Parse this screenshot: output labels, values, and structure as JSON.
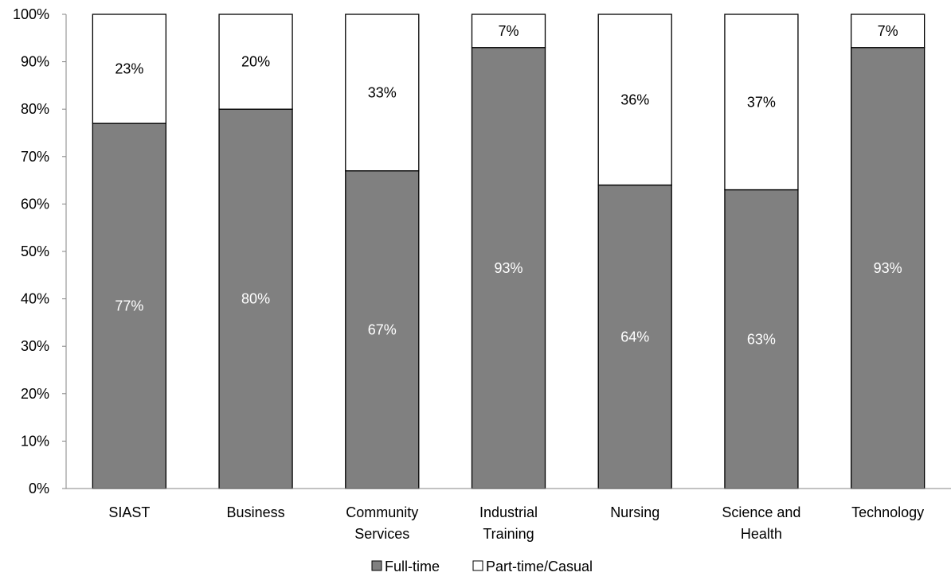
{
  "chart_data": {
    "type": "bar",
    "stacked": true,
    "categories": [
      [
        "SIAST"
      ],
      [
        "Business"
      ],
      [
        "Community",
        "Services"
      ],
      [
        "Industrial",
        "Training"
      ],
      [
        "Nursing"
      ],
      [
        "Science and",
        "Health"
      ],
      [
        "Technology"
      ]
    ],
    "series": [
      {
        "name": "Full-time",
        "values": [
          77,
          80,
          67,
          93,
          64,
          63,
          93
        ],
        "labels": [
          "77%",
          "80%",
          "67%",
          "93%",
          "64%",
          "63%",
          "93%"
        ],
        "color": "#808080",
        "label_color": "#ffffff"
      },
      {
        "name": "Part-time/Casual",
        "values": [
          23,
          20,
          33,
          7,
          36,
          37,
          7
        ],
        "labels": [
          "23%",
          "20%",
          "33%",
          "7%",
          "36%",
          "37%",
          "7%"
        ],
        "color": "#ffffff",
        "label_color": "#000000"
      }
    ],
    "ylim": [
      0,
      100
    ],
    "y_ticks": [
      "0%",
      "10%",
      "20%",
      "30%",
      "40%",
      "50%",
      "60%",
      "70%",
      "80%",
      "90%",
      "100%"
    ],
    "grid": false,
    "legend_position": "bottom"
  }
}
